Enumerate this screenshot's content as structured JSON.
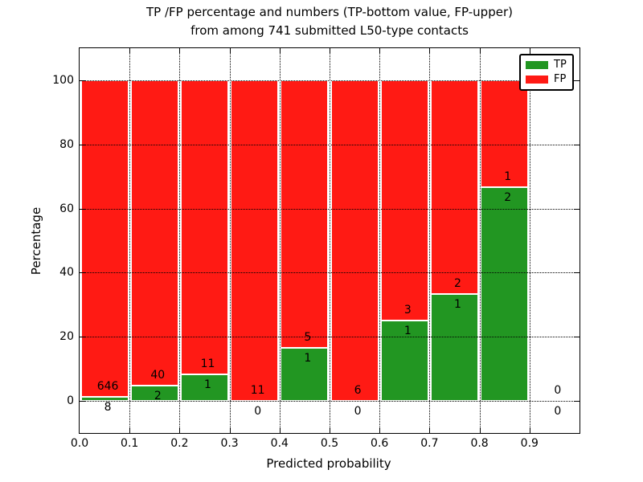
{
  "chart_data": {
    "type": "bar",
    "stacked": true,
    "title_line1": "TP /FP percentage and numbers (TP-bottom value, FP-upper)",
    "title_line2": "from among 741 submitted L50-type contacts",
    "total_contacts": "741",
    "xlabel": "Predicted probability",
    "ylabel": "Percentage",
    "xlim": [
      0.0,
      1.0
    ],
    "ylim": [
      -10,
      110
    ],
    "xticks": [
      "0.0",
      "0.1",
      "0.2",
      "0.3",
      "0.4",
      "0.5",
      "0.6",
      "0.7",
      "0.8",
      "0.9"
    ],
    "yticks": [
      "0",
      "20",
      "40",
      "60",
      "80",
      "100"
    ],
    "ytick_values": [
      0,
      20,
      40,
      60,
      80,
      100
    ],
    "grid": "dotted",
    "label_rule": "FP count printed just above TP/FP boundary, TP count just below it",
    "bins": [
      {
        "range": "0.0-0.1",
        "tp": 8,
        "fp": 646,
        "tp_pct": 1.2
      },
      {
        "range": "0.1-0.2",
        "tp": 2,
        "fp": 40,
        "tp_pct": 4.8
      },
      {
        "range": "0.2-0.3",
        "tp": 1,
        "fp": 11,
        "tp_pct": 8.3
      },
      {
        "range": "0.3-0.4",
        "tp": 0,
        "fp": 11,
        "tp_pct": 0.0
      },
      {
        "range": "0.4-0.5",
        "tp": 1,
        "fp": 5,
        "tp_pct": 16.7
      },
      {
        "range": "0.5-0.6",
        "tp": 0,
        "fp": 6,
        "tp_pct": 0.0
      },
      {
        "range": "0.6-0.7",
        "tp": 1,
        "fp": 3,
        "tp_pct": 25.0
      },
      {
        "range": "0.7-0.8",
        "tp": 1,
        "fp": 2,
        "tp_pct": 33.3
      },
      {
        "range": "0.8-0.9",
        "tp": 2,
        "fp": 1,
        "tp_pct": 66.7
      },
      {
        "range": "0.9-1.0",
        "tp": 0,
        "fp": 0,
        "tp_pct": null
      }
    ],
    "legend": {
      "position": "upper right",
      "items": [
        {
          "label": "TP",
          "color": "#229622"
        },
        {
          "label": "FP",
          "color": "#ff1a14"
        }
      ]
    },
    "colors": {
      "tp": "#229622",
      "fp": "#ff1a14",
      "grid": "#000000",
      "frame": "#000000"
    }
  }
}
